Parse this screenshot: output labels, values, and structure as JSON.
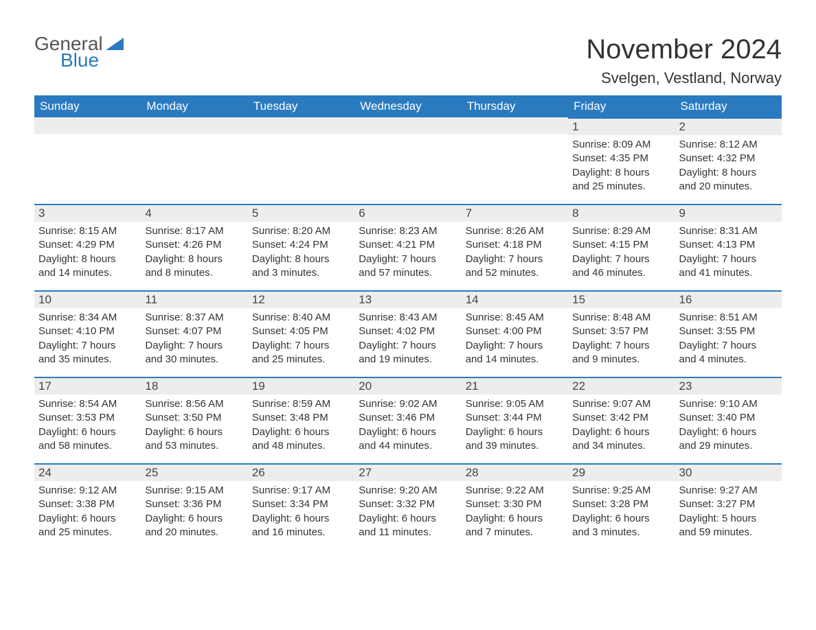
{
  "logo": {
    "text_general": "General",
    "text_blue": "Blue"
  },
  "title": "November 2024",
  "location": "Svelgen, Vestland, Norway",
  "colors": {
    "header_bg": "#2a7ac0",
    "header_text": "#ffffff",
    "daynum_bg": "#ededed",
    "border_top": "#2a7ac0",
    "body_text": "#333333",
    "page_bg": "#ffffff"
  },
  "fonts": {
    "title_size_pt": 30,
    "location_size_pt": 17,
    "header_size_pt": 13,
    "daynum_size_pt": 13,
    "body_size_pt": 11
  },
  "weekdays": [
    "Sunday",
    "Monday",
    "Tuesday",
    "Wednesday",
    "Thursday",
    "Friday",
    "Saturday"
  ],
  "weeks": [
    [
      null,
      null,
      null,
      null,
      null,
      {
        "n": "1",
        "sr": "Sunrise: 8:09 AM",
        "ss": "Sunset: 4:35 PM",
        "d1": "Daylight: 8 hours",
        "d2": "and 25 minutes."
      },
      {
        "n": "2",
        "sr": "Sunrise: 8:12 AM",
        "ss": "Sunset: 4:32 PM",
        "d1": "Daylight: 8 hours",
        "d2": "and 20 minutes."
      }
    ],
    [
      {
        "n": "3",
        "sr": "Sunrise: 8:15 AM",
        "ss": "Sunset: 4:29 PM",
        "d1": "Daylight: 8 hours",
        "d2": "and 14 minutes."
      },
      {
        "n": "4",
        "sr": "Sunrise: 8:17 AM",
        "ss": "Sunset: 4:26 PM",
        "d1": "Daylight: 8 hours",
        "d2": "and 8 minutes."
      },
      {
        "n": "5",
        "sr": "Sunrise: 8:20 AM",
        "ss": "Sunset: 4:24 PM",
        "d1": "Daylight: 8 hours",
        "d2": "and 3 minutes."
      },
      {
        "n": "6",
        "sr": "Sunrise: 8:23 AM",
        "ss": "Sunset: 4:21 PM",
        "d1": "Daylight: 7 hours",
        "d2": "and 57 minutes."
      },
      {
        "n": "7",
        "sr": "Sunrise: 8:26 AM",
        "ss": "Sunset: 4:18 PM",
        "d1": "Daylight: 7 hours",
        "d2": "and 52 minutes."
      },
      {
        "n": "8",
        "sr": "Sunrise: 8:29 AM",
        "ss": "Sunset: 4:15 PM",
        "d1": "Daylight: 7 hours",
        "d2": "and 46 minutes."
      },
      {
        "n": "9",
        "sr": "Sunrise: 8:31 AM",
        "ss": "Sunset: 4:13 PM",
        "d1": "Daylight: 7 hours",
        "d2": "and 41 minutes."
      }
    ],
    [
      {
        "n": "10",
        "sr": "Sunrise: 8:34 AM",
        "ss": "Sunset: 4:10 PM",
        "d1": "Daylight: 7 hours",
        "d2": "and 35 minutes."
      },
      {
        "n": "11",
        "sr": "Sunrise: 8:37 AM",
        "ss": "Sunset: 4:07 PM",
        "d1": "Daylight: 7 hours",
        "d2": "and 30 minutes."
      },
      {
        "n": "12",
        "sr": "Sunrise: 8:40 AM",
        "ss": "Sunset: 4:05 PM",
        "d1": "Daylight: 7 hours",
        "d2": "and 25 minutes."
      },
      {
        "n": "13",
        "sr": "Sunrise: 8:43 AM",
        "ss": "Sunset: 4:02 PM",
        "d1": "Daylight: 7 hours",
        "d2": "and 19 minutes."
      },
      {
        "n": "14",
        "sr": "Sunrise: 8:45 AM",
        "ss": "Sunset: 4:00 PM",
        "d1": "Daylight: 7 hours",
        "d2": "and 14 minutes."
      },
      {
        "n": "15",
        "sr": "Sunrise: 8:48 AM",
        "ss": "Sunset: 3:57 PM",
        "d1": "Daylight: 7 hours",
        "d2": "and 9 minutes."
      },
      {
        "n": "16",
        "sr": "Sunrise: 8:51 AM",
        "ss": "Sunset: 3:55 PM",
        "d1": "Daylight: 7 hours",
        "d2": "and 4 minutes."
      }
    ],
    [
      {
        "n": "17",
        "sr": "Sunrise: 8:54 AM",
        "ss": "Sunset: 3:53 PM",
        "d1": "Daylight: 6 hours",
        "d2": "and 58 minutes."
      },
      {
        "n": "18",
        "sr": "Sunrise: 8:56 AM",
        "ss": "Sunset: 3:50 PM",
        "d1": "Daylight: 6 hours",
        "d2": "and 53 minutes."
      },
      {
        "n": "19",
        "sr": "Sunrise: 8:59 AM",
        "ss": "Sunset: 3:48 PM",
        "d1": "Daylight: 6 hours",
        "d2": "and 48 minutes."
      },
      {
        "n": "20",
        "sr": "Sunrise: 9:02 AM",
        "ss": "Sunset: 3:46 PM",
        "d1": "Daylight: 6 hours",
        "d2": "and 44 minutes."
      },
      {
        "n": "21",
        "sr": "Sunrise: 9:05 AM",
        "ss": "Sunset: 3:44 PM",
        "d1": "Daylight: 6 hours",
        "d2": "and 39 minutes."
      },
      {
        "n": "22",
        "sr": "Sunrise: 9:07 AM",
        "ss": "Sunset: 3:42 PM",
        "d1": "Daylight: 6 hours",
        "d2": "and 34 minutes."
      },
      {
        "n": "23",
        "sr": "Sunrise: 9:10 AM",
        "ss": "Sunset: 3:40 PM",
        "d1": "Daylight: 6 hours",
        "d2": "and 29 minutes."
      }
    ],
    [
      {
        "n": "24",
        "sr": "Sunrise: 9:12 AM",
        "ss": "Sunset: 3:38 PM",
        "d1": "Daylight: 6 hours",
        "d2": "and 25 minutes."
      },
      {
        "n": "25",
        "sr": "Sunrise: 9:15 AM",
        "ss": "Sunset: 3:36 PM",
        "d1": "Daylight: 6 hours",
        "d2": "and 20 minutes."
      },
      {
        "n": "26",
        "sr": "Sunrise: 9:17 AM",
        "ss": "Sunset: 3:34 PM",
        "d1": "Daylight: 6 hours",
        "d2": "and 16 minutes."
      },
      {
        "n": "27",
        "sr": "Sunrise: 9:20 AM",
        "ss": "Sunset: 3:32 PM",
        "d1": "Daylight: 6 hours",
        "d2": "and 11 minutes."
      },
      {
        "n": "28",
        "sr": "Sunrise: 9:22 AM",
        "ss": "Sunset: 3:30 PM",
        "d1": "Daylight: 6 hours",
        "d2": "and 7 minutes."
      },
      {
        "n": "29",
        "sr": "Sunrise: 9:25 AM",
        "ss": "Sunset: 3:28 PM",
        "d1": "Daylight: 6 hours",
        "d2": "and 3 minutes."
      },
      {
        "n": "30",
        "sr": "Sunrise: 9:27 AM",
        "ss": "Sunset: 3:27 PM",
        "d1": "Daylight: 5 hours",
        "d2": "and 59 minutes."
      }
    ]
  ]
}
